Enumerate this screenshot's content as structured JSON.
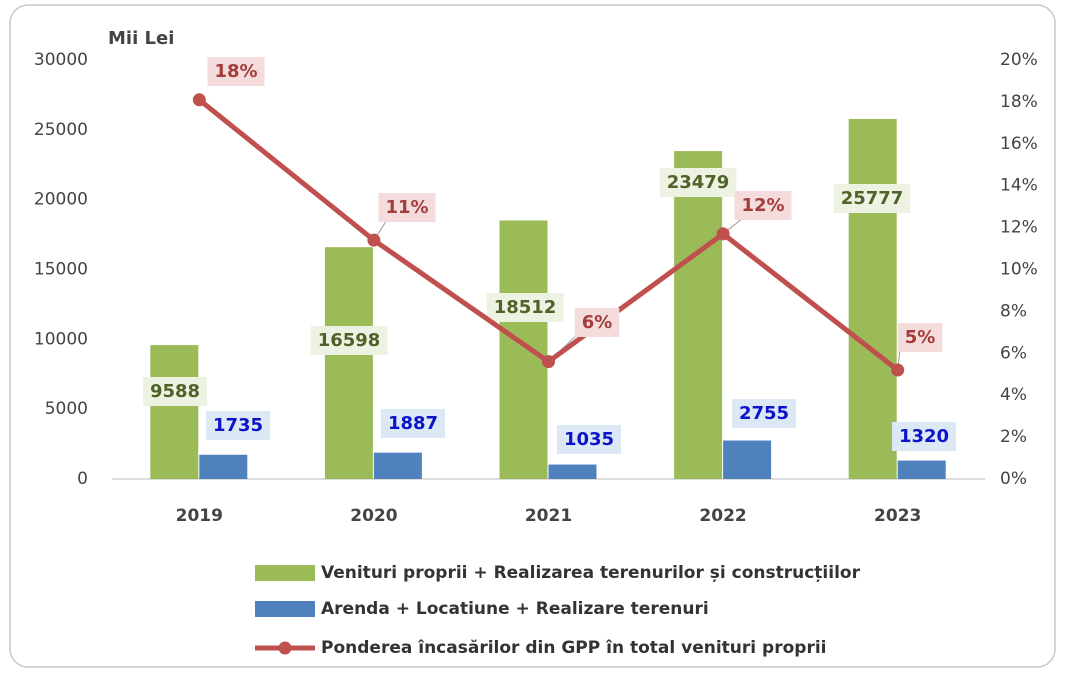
{
  "chart_data": {
    "type": "bar_line",
    "y_axis_label": "Mii Lei",
    "categories": [
      "2019",
      "2020",
      "2021",
      "2022",
      "2023"
    ],
    "series": [
      {
        "name": "Venituri proprii + Realizarea terenurilor și construcțiilor",
        "color": "#9bbb59",
        "type": "bar",
        "values": [
          9588,
          16598,
          18512,
          23479,
          25777
        ]
      },
      {
        "name": "Arenda + Locatiune + Realizare terenuri",
        "color": "#4f81bd",
        "type": "bar",
        "values": [
          1735,
          1887,
          1035,
          2755,
          1320
        ]
      },
      {
        "name": "Ponderea încasărilor din GPP în total venituri proprii",
        "color": "#c0504d",
        "type": "line",
        "axis": "y2",
        "values": [
          18.1,
          11.4,
          5.6,
          11.7,
          5.2
        ],
        "value_labels": [
          "18%",
          "11%",
          "6%",
          "12%",
          "5%"
        ]
      }
    ],
    "ylim": [
      0,
      30000
    ],
    "yticks": [
      0,
      5000,
      10000,
      15000,
      20000,
      25000,
      30000
    ],
    "y2lim": [
      0,
      20
    ],
    "y2ticks": [
      {
        "value": 0,
        "label": "0%"
      },
      {
        "value": 2,
        "label": "2%"
      },
      {
        "value": 4,
        "label": "4%"
      },
      {
        "value": 6,
        "label": "6%"
      },
      {
        "value": 8,
        "label": "8%"
      },
      {
        "value": 10,
        "label": "10%"
      },
      {
        "value": 12,
        "label": "12%"
      },
      {
        "value": 14,
        "label": "14%"
      },
      {
        "value": 16,
        "label": "16%"
      },
      {
        "value": 18,
        "label": "18%"
      },
      {
        "value": 20,
        "label": "20%"
      }
    ]
  }
}
